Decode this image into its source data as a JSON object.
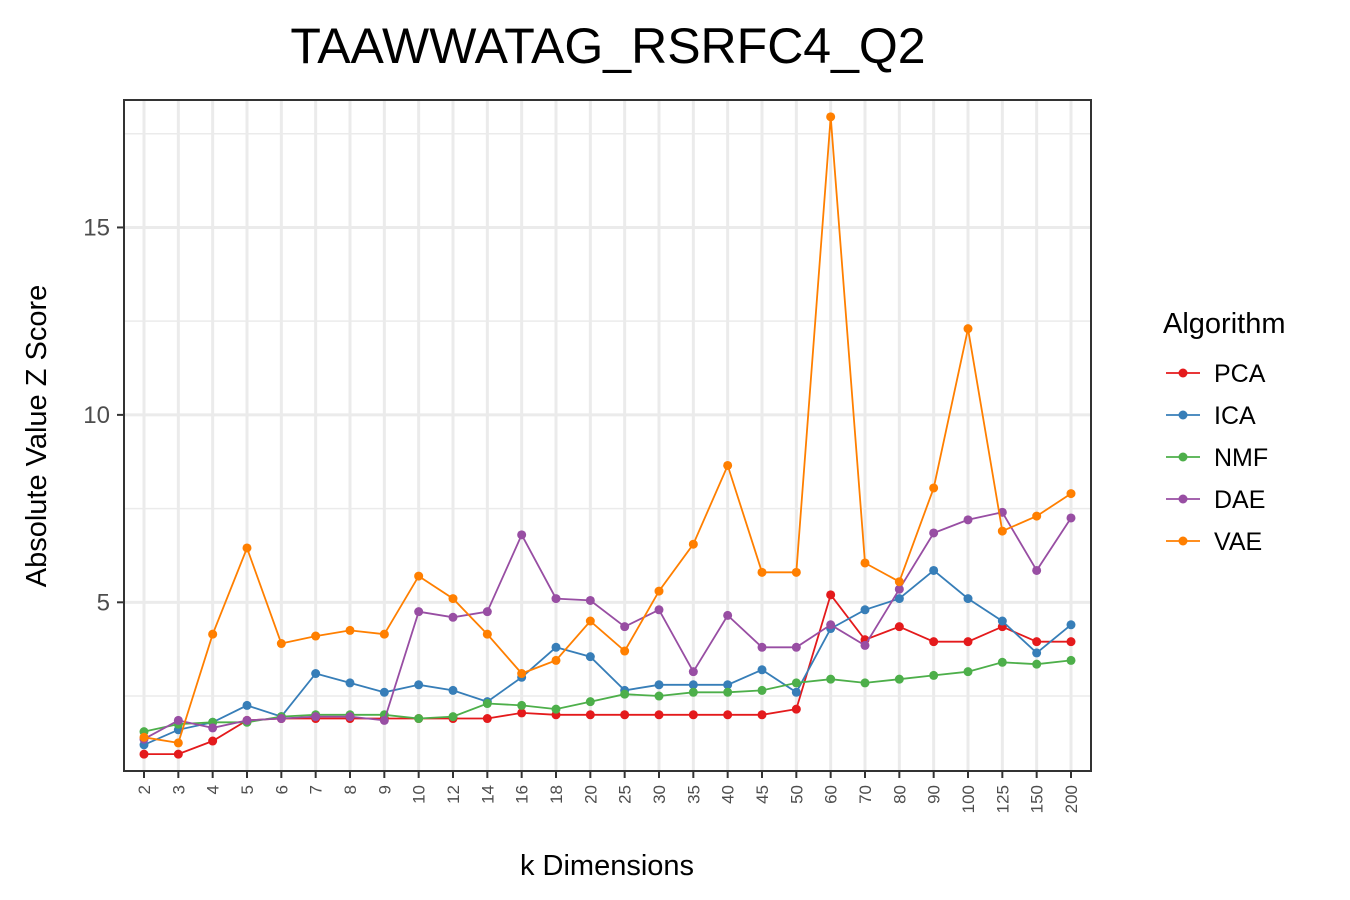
{
  "colors": {
    "PCA": "#e41a1c",
    "ICA": "#377eb8",
    "NMF": "#4daf4a",
    "DAE": "#984ea3",
    "VAE": "#ff7f00",
    "grid": "#ebebeb",
    "panel_border": "#333333",
    "tick_text": "#4d4d4d"
  },
  "chart_data": {
    "type": "line",
    "title": "TAAWWATAG_RSRFC4_Q2",
    "xlabel": "k Dimensions",
    "ylabel": "Absolute Value Z Score",
    "categories": [
      "2",
      "3",
      "4",
      "5",
      "6",
      "7",
      "8",
      "9",
      "10",
      "12",
      "14",
      "16",
      "18",
      "20",
      "25",
      "30",
      "35",
      "40",
      "45",
      "50",
      "60",
      "70",
      "80",
      "90",
      "100",
      "125",
      "150",
      "200"
    ],
    "ylim": [
      0.5,
      18.4
    ],
    "y_ticks": [
      5,
      10,
      15
    ],
    "grid": true,
    "legend": {
      "title": "Algorithm",
      "position": "right"
    },
    "series": [
      {
        "name": "PCA",
        "values": [
          0.95,
          0.95,
          1.3,
          1.85,
          1.9,
          1.9,
          1.9,
          1.9,
          1.9,
          1.9,
          1.9,
          2.05,
          2.0,
          2.0,
          2.0,
          2.0,
          2.0,
          2.0,
          2.0,
          2.15,
          5.2,
          4.0,
          4.35,
          3.95,
          3.95,
          4.35,
          3.95,
          3.95
        ]
      },
      {
        "name": "ICA",
        "values": [
          1.2,
          1.6,
          1.8,
          2.25,
          1.95,
          3.1,
          2.85,
          2.6,
          2.8,
          2.65,
          2.35,
          3.0,
          3.8,
          3.55,
          2.65,
          2.8,
          2.8,
          2.8,
          3.2,
          2.6,
          4.3,
          4.8,
          5.1,
          5.85,
          5.1,
          4.5,
          3.65,
          4.4
        ]
      },
      {
        "name": "NMF",
        "values": [
          1.55,
          1.75,
          1.8,
          1.8,
          1.95,
          2.0,
          2.0,
          2.0,
          1.9,
          1.95,
          2.3,
          2.25,
          2.15,
          2.35,
          2.55,
          2.5,
          2.6,
          2.6,
          2.65,
          2.85,
          2.95,
          2.85,
          2.95,
          3.05,
          3.15,
          3.4,
          3.35,
          3.45
        ]
      },
      {
        "name": "DAE",
        "values": [
          1.35,
          1.85,
          1.65,
          1.85,
          1.9,
          1.95,
          1.95,
          1.85,
          4.75,
          4.6,
          4.75,
          6.8,
          5.1,
          5.05,
          4.35,
          4.8,
          3.15,
          4.65,
          3.8,
          3.8,
          4.4,
          3.85,
          5.35,
          6.85,
          7.2,
          7.4,
          5.85,
          7.25
        ]
      },
      {
        "name": "VAE",
        "values": [
          1.4,
          1.25,
          4.15,
          6.45,
          3.9,
          4.1,
          4.25,
          4.15,
          5.7,
          5.1,
          4.15,
          3.1,
          3.45,
          4.5,
          3.7,
          5.3,
          6.55,
          8.65,
          5.8,
          5.8,
          17.95,
          6.05,
          5.55,
          8.05,
          12.3,
          6.9,
          7.3,
          7.9
        ]
      }
    ]
  }
}
